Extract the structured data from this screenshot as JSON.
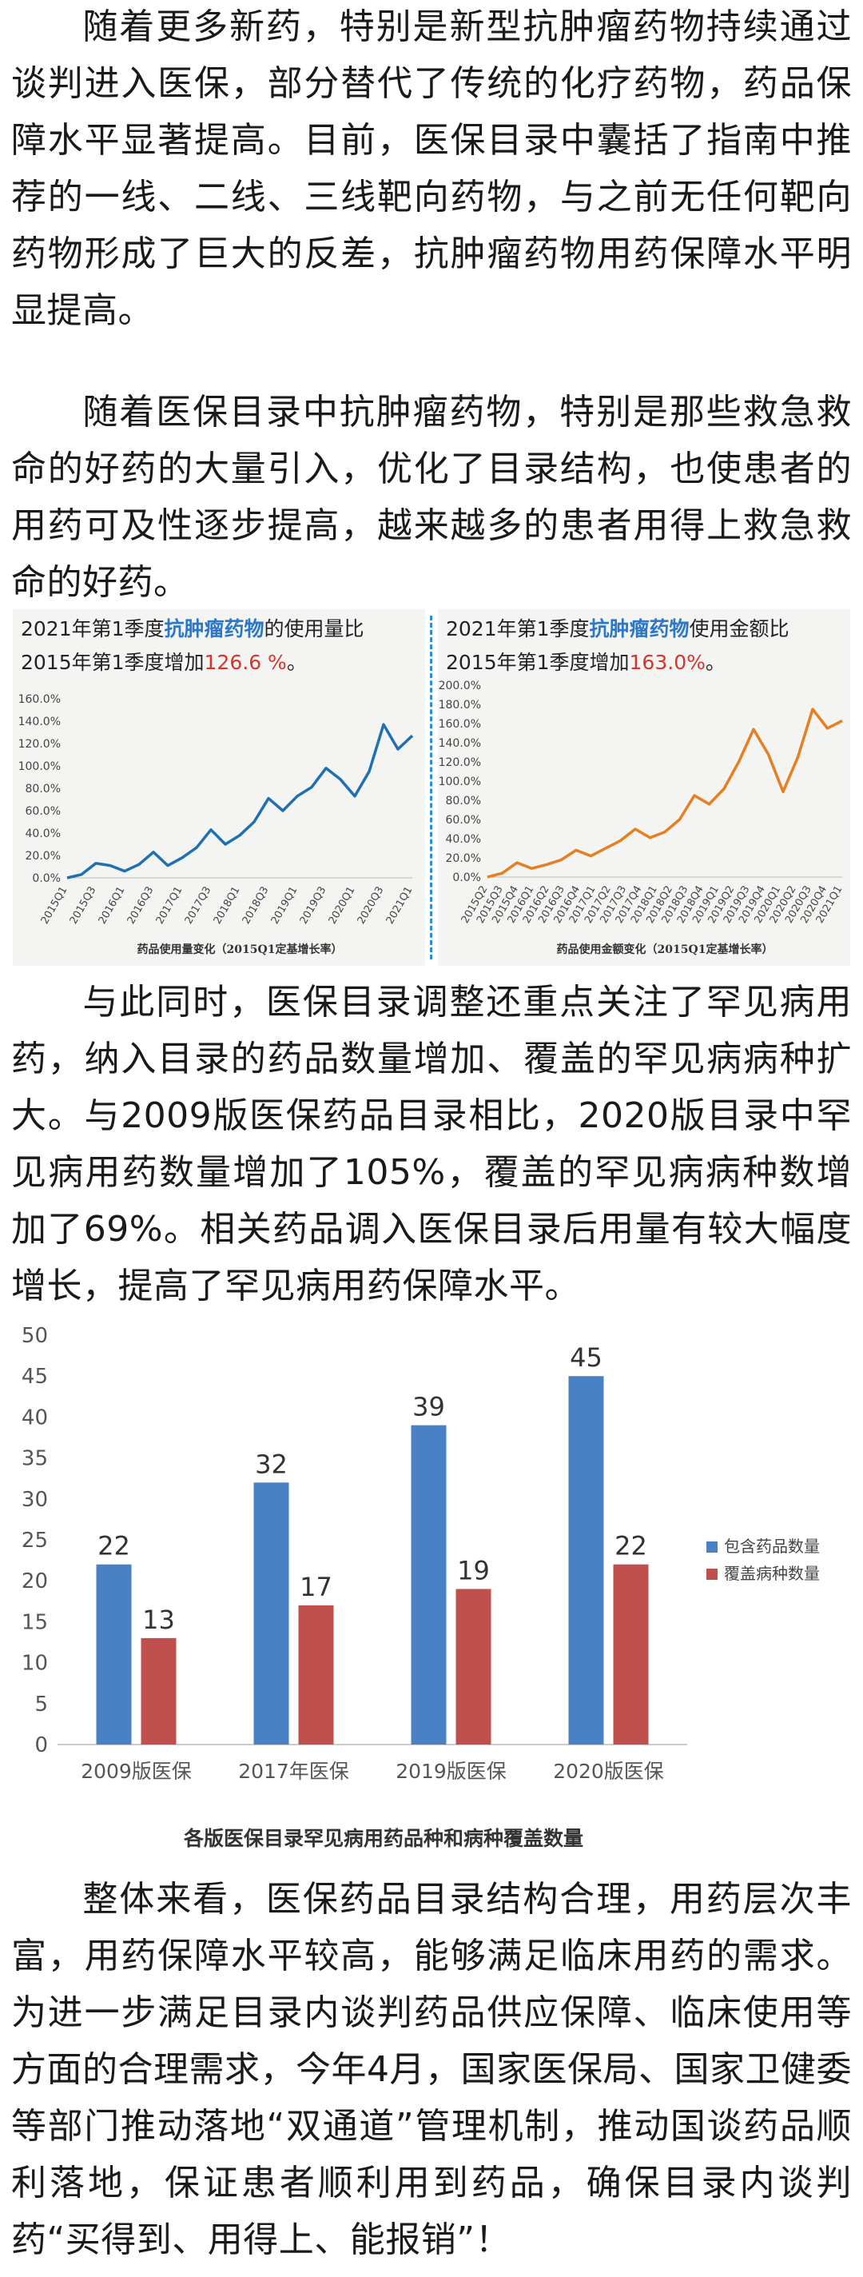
{
  "paragraphs": {
    "p1": "随着更多新药，特别是新型抗肿瘤药物持续通过谈判进入医保，部分替代了传统的化疗药物，药品保障水平显著提高。目前，医保目录中囊括了指南中推荐的一线、二线、三线靶向药物，与之前无任何靶向药物形成了巨大的反差，抗肿瘤药物用药保障水平明显提高。",
    "p2": "随着医保目录中抗肿瘤药物，特别是那些救急救命的好药的大量引入，优化了目录结构，也使患者的用药可及性逐步提高，越来越多的患者用得上救急救命的好药。",
    "p3": "与此同时，医保目录调整还重点关注了罕见病用药，纳入目录的药品数量增加、覆盖的罕见病病种扩大。与2009版医保药品目录相比，2020版目录中罕见病用药数量增加了105%，覆盖的罕见病病种数增加了69%。相关药品调入医保目录后用量有较大幅度增长，提高了罕见病用药保障水平。",
    "p4": "整体来看，医保药品目录结构合理，用药层次丰富，用药保障水平较高，能够满足临床用药的需求。为进一步满足目录内谈判药品供应保障、临床使用等方面的合理需求，今年4月，国家医保局、国家卫健委等部门推动落地“双通道”管理机制，推动国谈药品顺利落地，保证患者顺利用到药品，确保目录内谈判药“买得到、用得上、能报销”！"
  },
  "chart_left_title": {
    "a": "2021年第1季度",
    "b": "抗肿瘤药物",
    "c": "的使用量比",
    "d": "2015年第1季度增加",
    "e": "126.6 %",
    "f": "。"
  },
  "chart_right_title": {
    "a": "2021年第1季度",
    "b": "抗肿瘤药物",
    "c": "使用金额比",
    "d": "2015年第1季度增加",
    "e": "163.0%",
    "f": "。"
  },
  "colors": {
    "blue_line": "#1f6fb3",
    "orange_line": "#e57f22",
    "bar_blue": "#4a80c4",
    "bar_red": "#c0504d",
    "highlight_blue": "#2b78c8",
    "highlight_red": "#d9332b"
  },
  "chart_data": [
    {
      "type": "line",
      "title": "2021年第1季度抗肿瘤药物的使用量比2015年第1季度增加126.6 %。",
      "xlabel": "药品使用量变化（2015Q1定基增长率）",
      "ylabel": "",
      "ylim": [
        0,
        160
      ],
      "ytick_labels": [
        "0.0%",
        "20.0%",
        "40.0%",
        "60.0%",
        "80.0%",
        "100.0%",
        "120.0%",
        "140.0%",
        "160.0%"
      ],
      "x_tick_labels": [
        "2015Q1",
        "2015Q3",
        "2016Q1",
        "2016Q3",
        "2017Q1",
        "2017Q3",
        "2018Q1",
        "2018Q3",
        "2019Q1",
        "2019Q3",
        "2020Q1",
        "2020Q3",
        "2021Q1"
      ],
      "x": [
        "2015Q1",
        "2015Q2",
        "2015Q3",
        "2015Q4",
        "2016Q1",
        "2016Q2",
        "2016Q3",
        "2016Q4",
        "2017Q1",
        "2017Q2",
        "2017Q3",
        "2017Q4",
        "2018Q1",
        "2018Q2",
        "2018Q3",
        "2018Q4",
        "2019Q1",
        "2019Q2",
        "2019Q3",
        "2019Q4",
        "2020Q1",
        "2020Q2",
        "2020Q3",
        "2020Q4",
        "2021Q1"
      ],
      "series": [
        {
          "values": [
            0,
            3,
            13,
            11,
            6,
            12,
            23,
            11,
            18,
            27,
            43,
            30,
            38,
            50,
            71,
            60,
            73,
            81,
            98,
            88,
            73,
            95,
            137,
            115,
            127
          ]
        }
      ],
      "grid": false
    },
    {
      "type": "line",
      "title": "2021年第1季度抗肿瘤药物使用金额比2015年第1季度增加163.0%。",
      "xlabel": "药品使用金额变化（2015Q1定基增长率）",
      "ylabel": "",
      "ylim": [
        0,
        200
      ],
      "ytick_labels": [
        "0.0%",
        "20.0%",
        "40.0%",
        "60.0%",
        "80.0%",
        "100.0%",
        "120.0%",
        "140.0%",
        "160.0%",
        "180.0%",
        "200.0%"
      ],
      "x_tick_labels": [
        "2015Q2",
        "2015Q3",
        "2015Q4",
        "2016Q1",
        "2016Q2",
        "2016Q3",
        "2016Q4",
        "2017Q1",
        "2017Q2",
        "2017Q3",
        "2017Q4",
        "2018Q1",
        "2018Q2",
        "2018Q3",
        "2018Q4",
        "2019Q1",
        "2019Q2",
        "2019Q3",
        "2019Q4",
        "2020Q1",
        "2020Q2",
        "2020Q3",
        "2020Q4",
        "2021Q1"
      ],
      "x": [
        "2015Q1",
        "2015Q2",
        "2015Q3",
        "2015Q4",
        "2016Q1",
        "2016Q2",
        "2016Q3",
        "2016Q4",
        "2017Q1",
        "2017Q2",
        "2017Q3",
        "2017Q4",
        "2018Q1",
        "2018Q2",
        "2018Q3",
        "2018Q4",
        "2019Q1",
        "2019Q2",
        "2019Q3",
        "2019Q4",
        "2020Q1",
        "2020Q2",
        "2020Q3",
        "2020Q4",
        "2021Q1"
      ],
      "series": [
        {
          "values": [
            0,
            4,
            15,
            9,
            13,
            18,
            28,
            22,
            30,
            38,
            50,
            41,
            47,
            60,
            85,
            76,
            92,
            120,
            154,
            128,
            89,
            125,
            175,
            155,
            163
          ]
        }
      ],
      "grid": false
    },
    {
      "type": "bar",
      "title": "",
      "xlabel": "各版医保目录罕见病用药品种和病种覆盖数量",
      "ylabel": "",
      "ylim": [
        0,
        50
      ],
      "ytick_labels": [
        "0",
        "5",
        "10",
        "15",
        "20",
        "25",
        "30",
        "35",
        "40",
        "45",
        "50"
      ],
      "categories": [
        "2009版医保",
        "2017年医保",
        "2019版医保",
        "2020版医保"
      ],
      "series": [
        {
          "name": "包含药品数量",
          "values": [
            22,
            32,
            39,
            45
          ]
        },
        {
          "name": "覆盖病种数量",
          "values": [
            13,
            17,
            19,
            22
          ]
        }
      ],
      "legend": "right",
      "grid": false
    }
  ]
}
